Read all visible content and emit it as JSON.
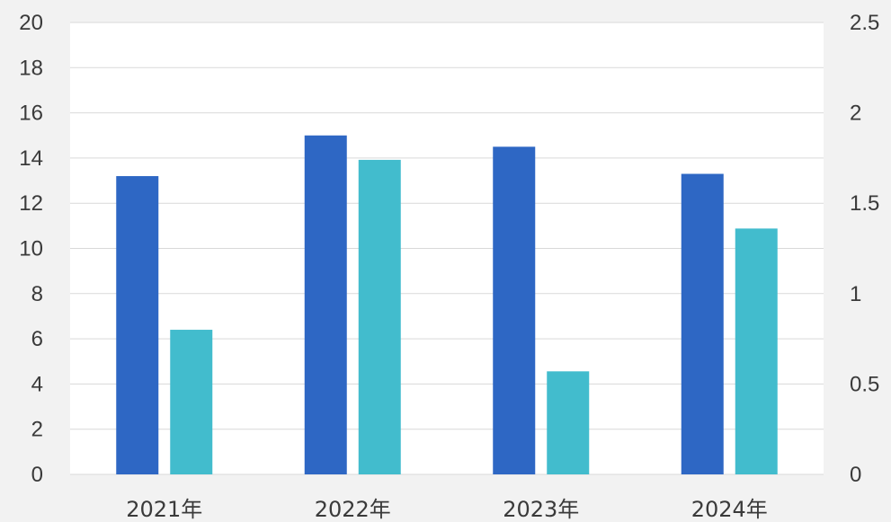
{
  "chart_data": {
    "type": "bar",
    "categories": [
      "2021年",
      "2022年",
      "2023年",
      "2024年"
    ],
    "series": [
      {
        "axis": "left",
        "color": "#2e67c4",
        "values": [
          13.2,
          15.0,
          14.5,
          13.3
        ]
      },
      {
        "axis": "right",
        "color": "#42bccd",
        "values": [
          0.8,
          1.74,
          0.57,
          1.36
        ]
      }
    ],
    "y_left": {
      "lim": [
        0,
        20
      ],
      "ticks": [
        0,
        2,
        4,
        6,
        8,
        10,
        12,
        14,
        16,
        18,
        20
      ],
      "tick_labels": [
        "0",
        "2",
        "4",
        "6",
        "8",
        "10",
        "12",
        "14",
        "16",
        "18",
        "20"
      ]
    },
    "y_right": {
      "lim": [
        0,
        2.5
      ],
      "ticks": [
        0,
        0.5,
        1,
        1.5,
        2,
        2.5
      ],
      "tick_labels": [
        "0",
        "0.5",
        "1",
        "1.5",
        "2",
        "2.5"
      ]
    },
    "grid": true,
    "legend": "none",
    "background_color": "#f2f2f2",
    "plot_background_color": "#ffffff",
    "grid_color": "#d9d9d9",
    "text_color": "#3a3a3a"
  }
}
